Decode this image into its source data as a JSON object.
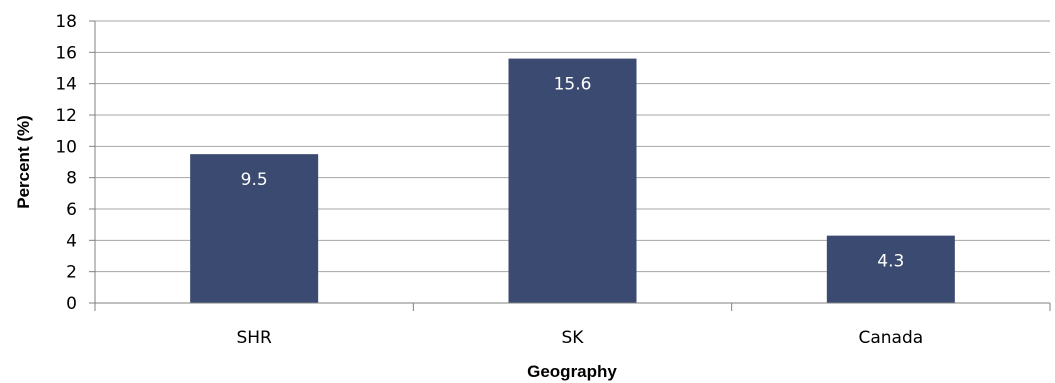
{
  "chart_data": {
    "type": "bar",
    "categories": [
      "SHR",
      "SK",
      "Canada"
    ],
    "values": [
      9.5,
      15.6,
      4.3
    ],
    "data_labels": [
      "9.5",
      "15.6",
      "4.3"
    ],
    "title": "",
    "xlabel": "Geography",
    "ylabel": "Percent (%)",
    "ylim": [
      0,
      18
    ],
    "yticks": [
      0,
      2,
      4,
      6,
      8,
      10,
      12,
      14,
      16,
      18
    ],
    "grid": "horizontal",
    "legend": "none",
    "bar_color": "#3a4a70",
    "gridline_color": "#a6a6a6"
  }
}
